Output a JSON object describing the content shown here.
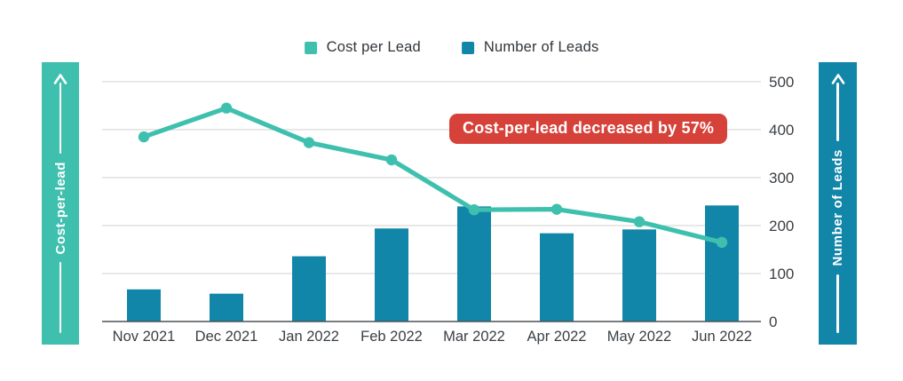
{
  "legend": {
    "items": [
      {
        "label": "Cost per Lead",
        "color": "#3fc0ae"
      },
      {
        "label": "Number of Leads",
        "color": "#1286a8"
      }
    ]
  },
  "left_banner": {
    "label": "Cost-per-lead",
    "color": "#3fc0ae"
  },
  "right_banner": {
    "label": "Number of Leads",
    "color": "#1286a8"
  },
  "annotation": {
    "text": "Cost-per-lead decreased by 57%",
    "color": "#d6423a"
  },
  "chart_data": {
    "type": "bar",
    "subtype": "bar+line combo, dual highlighted axes",
    "categories": [
      "Nov 2021",
      "Dec 2021",
      "Jan 2022",
      "Feb 2022",
      "Mar 2022",
      "Apr 2022",
      "May 2022",
      "Jun 2022"
    ],
    "series": [
      {
        "name": "Cost per Lead",
        "type": "line",
        "color": "#3fc0ae",
        "values": [
          385,
          445,
          373,
          337,
          233,
          234,
          208,
          165
        ]
      },
      {
        "name": "Number of Leads",
        "type": "bar",
        "color": "#1286a8",
        "values": [
          67,
          58,
          136,
          194,
          240,
          184,
          192,
          242
        ]
      }
    ],
    "y_axis": {
      "side": "right",
      "min": 0,
      "max": 500,
      "ticks": [
        0,
        100,
        200,
        300,
        400,
        500
      ]
    },
    "x_axis_label": "",
    "ylabel_left": "Cost-per-lead",
    "ylabel_right": "Number of Leads",
    "grid": true,
    "legend_position": "top",
    "grid_color": "#dadada",
    "axis_color": "#4d5257",
    "text_color": "#3a3f44"
  }
}
